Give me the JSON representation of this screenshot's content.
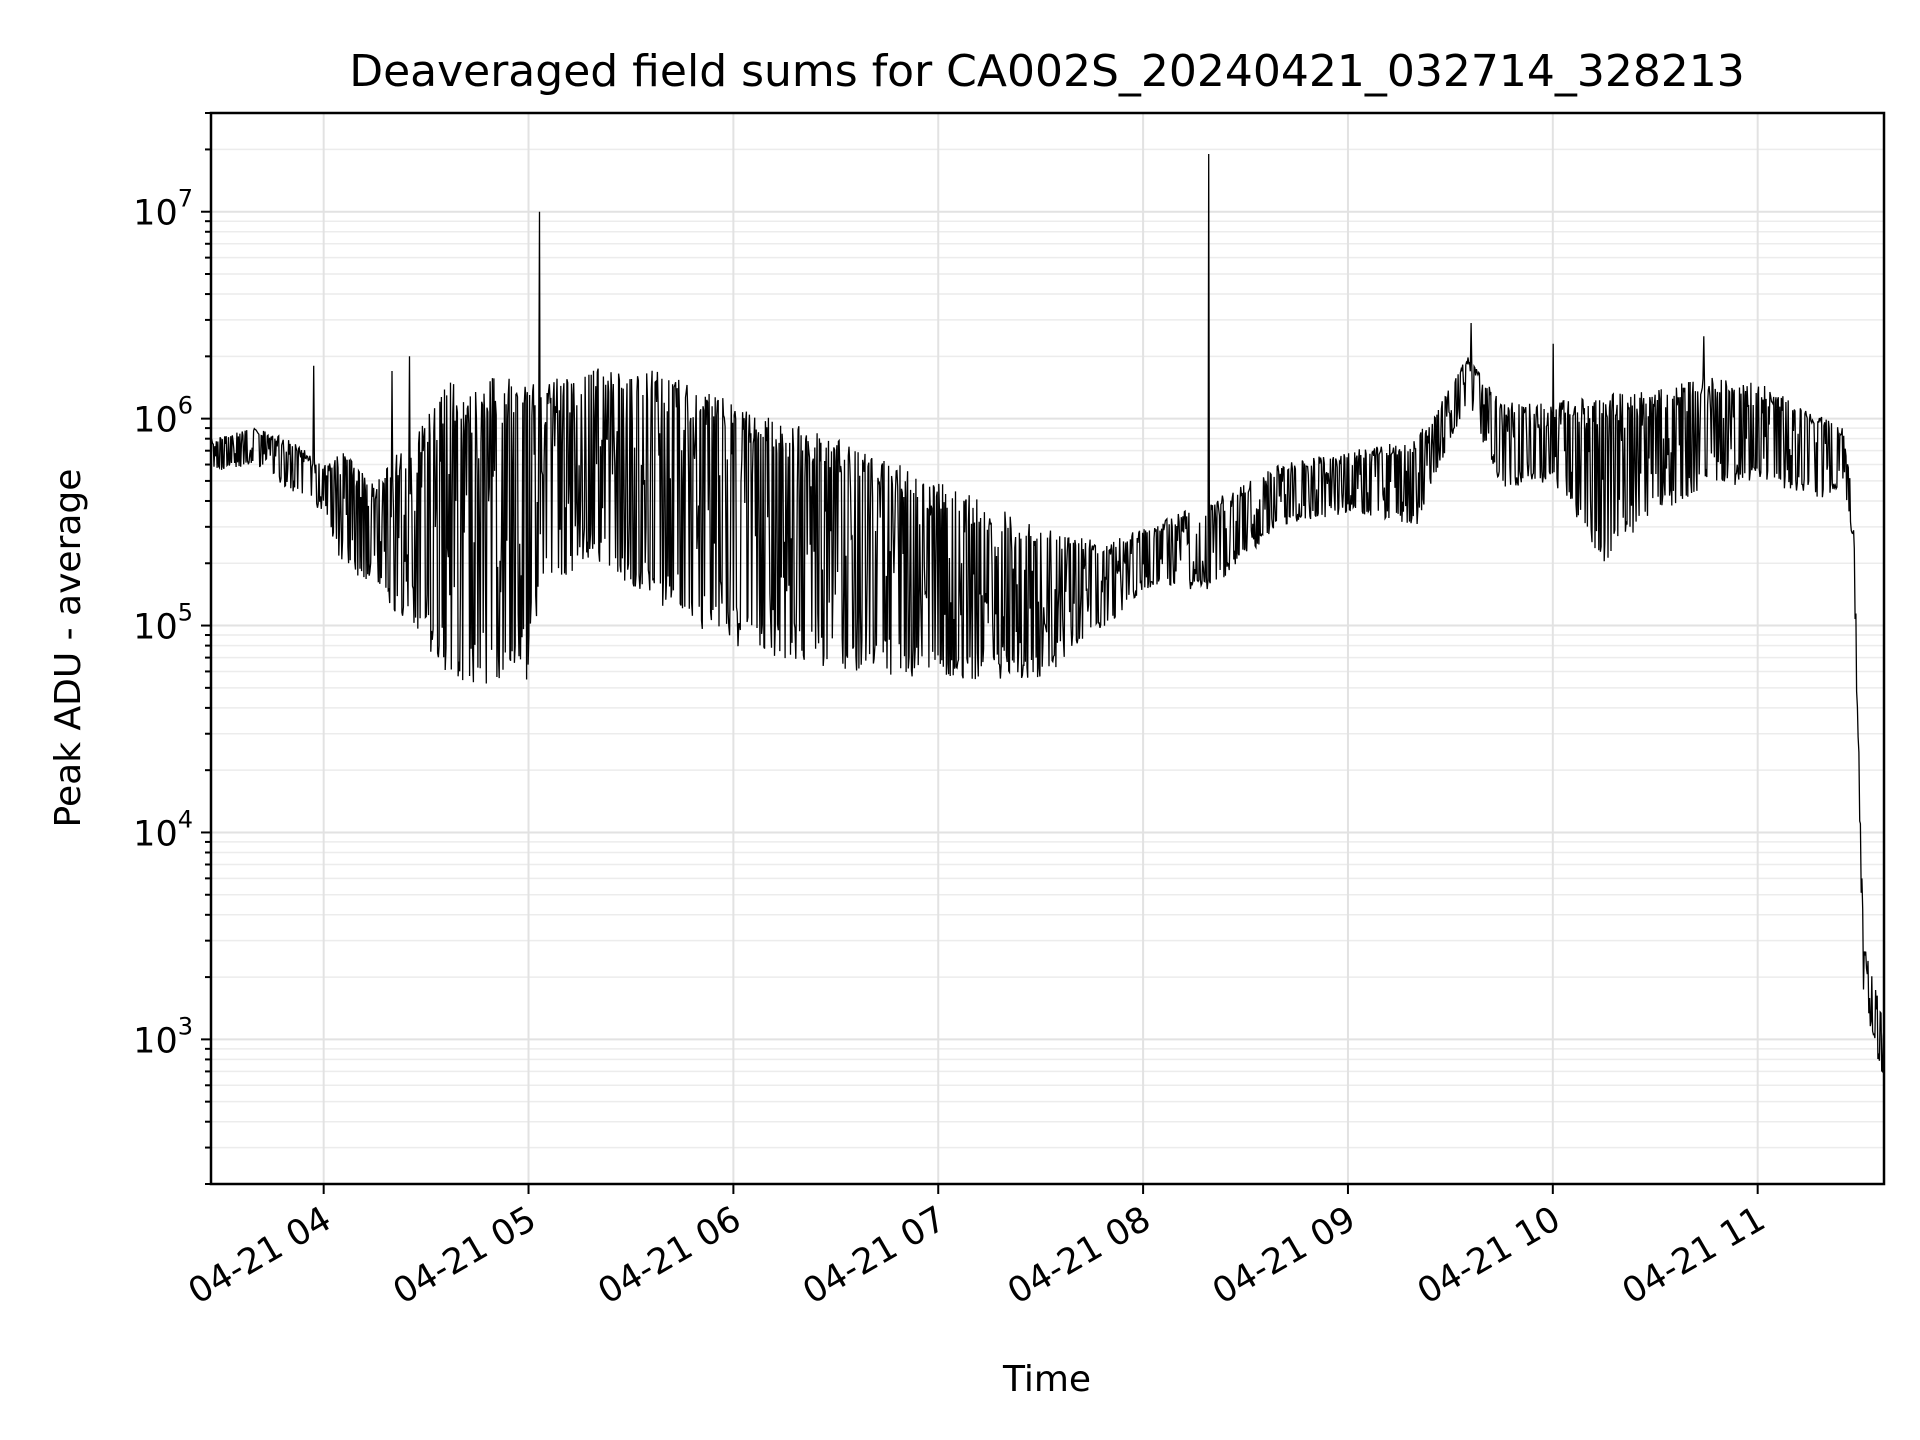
{
  "chart_data": {
    "type": "line",
    "title": "Deaveraged field sums for CA002S_20240421_032714_328213",
    "xlabel": "Time",
    "ylabel": "Peak ADU - average",
    "yscale": "log",
    "grid": "both",
    "line_color": "#000000",
    "x_tick_labels": [
      "04-21 04",
      "04-21 05",
      "04-21 06",
      "04-21 07",
      "04-21 08",
      "04-21 09",
      "04-21 10",
      "04-21 11"
    ],
    "y_tick_labels": [
      {
        "base": "10",
        "exp": "3"
      },
      {
        "base": "10",
        "exp": "4"
      },
      {
        "base": "10",
        "exp": "5"
      },
      {
        "base": "10",
        "exp": "6"
      },
      {
        "base": "10",
        "exp": "7"
      }
    ],
    "x_range": [
      "2024-04-21 03:27",
      "2024-04-21 11:37"
    ],
    "ylim": [
      200,
      30000000
    ],
    "envelope": {
      "x": [
        "2024-04-21 03:27",
        "2024-04-21 03:40",
        "2024-04-21 03:50",
        "2024-04-21 04:00",
        "2024-04-21 04:05",
        "2024-04-21 04:15",
        "2024-04-21 04:30",
        "2024-04-21 04:36",
        "2024-04-21 04:45",
        "2024-04-21 05:00",
        "2024-04-21 05:04",
        "2024-04-21 05:20",
        "2024-04-21 05:40",
        "2024-04-21 06:00",
        "2024-04-21 06:30",
        "2024-04-21 07:00",
        "2024-04-21 07:30",
        "2024-04-21 07:50",
        "2024-04-21 08:00",
        "2024-04-21 08:20",
        "2024-04-21 08:40",
        "2024-04-21 09:00",
        "2024-04-21 09:20",
        "2024-04-21 09:35",
        "2024-04-21 09:45",
        "2024-04-21 10:00",
        "2024-04-21 10:15",
        "2024-04-21 10:30",
        "2024-04-21 10:45",
        "2024-04-21 11:00",
        "2024-04-21 11:20",
        "2024-04-21 11:25",
        "2024-04-21 11:28",
        "2024-04-21 11:31",
        "2024-04-21 11:37"
      ],
      "upper": [
        800000,
        900000,
        800000,
        600000,
        700000,
        500000,
        1000000,
        1500000,
        1600000,
        1600000,
        1500000,
        1800000,
        1700000,
        1200000,
        800000,
        500000,
        300000,
        250000,
        300000,
        400000,
        600000,
        700000,
        800000,
        2000000,
        1200000,
        1200000,
        1300000,
        1400000,
        1600000,
        1500000,
        1000000,
        900000,
        400000,
        3000,
        1200
      ],
      "lower": [
        550000,
        600000,
        450000,
        350000,
        200000,
        150000,
        80000,
        55000,
        50000,
        55000,
        150000,
        200000,
        120000,
        80000,
        60000,
        55000,
        55000,
        100000,
        150000,
        150000,
        300000,
        350000,
        300000,
        1200000,
        450000,
        500000,
        200000,
        350000,
        450000,
        500000,
        400000,
        500000,
        250000,
        1600,
        600
      ]
    },
    "spikes": [
      {
        "x": "2024-04-21 03:57",
        "y": 1800000
      },
      {
        "x": "2024-04-21 04:20",
        "y": 1700000
      },
      {
        "x": "2024-04-21 04:25",
        "y": 2000000
      },
      {
        "x": "2024-04-21 05:03",
        "y": 10000000
      },
      {
        "x": "2024-04-21 08:19",
        "y": 19000000
      },
      {
        "x": "2024-04-21 09:36",
        "y": 2900000
      },
      {
        "x": "2024-04-21 10:00",
        "y": 2300000
      },
      {
        "x": "2024-04-21 10:44",
        "y": 2500000
      }
    ]
  }
}
